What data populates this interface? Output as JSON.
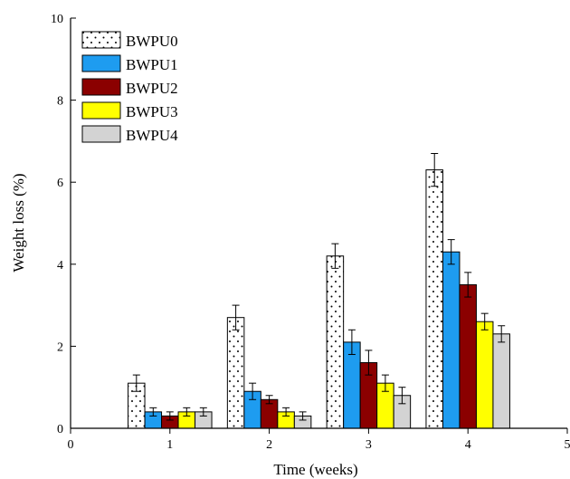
{
  "chart_data": {
    "type": "bar",
    "title": "",
    "xlabel": "Time (weeks)",
    "ylabel": "Weight loss (%)",
    "categories": [
      1,
      2,
      3,
      4
    ],
    "xlim": [
      0,
      5
    ],
    "ylim": [
      0,
      10
    ],
    "x_ticks": [
      "0",
      "1",
      "2",
      "3",
      "4",
      "5"
    ],
    "y_ticks": [
      "0",
      "2",
      "4",
      "6",
      "8",
      "10"
    ],
    "grid": false,
    "legend_position": "top-left",
    "series": [
      {
        "name": "BWPU0",
        "color": "#ffffff",
        "pattern": "dots",
        "values": [
          1.1,
          2.7,
          4.2,
          6.3
        ],
        "errors": [
          0.2,
          0.3,
          0.3,
          0.4
        ]
      },
      {
        "name": "BWPU1",
        "color": "#1e9cf0",
        "values": [
          0.4,
          0.9,
          2.1,
          4.3
        ],
        "errors": [
          0.1,
          0.2,
          0.3,
          0.3
        ]
      },
      {
        "name": "BWPU2",
        "color": "#8b0000",
        "values": [
          0.3,
          0.7,
          1.6,
          3.5
        ],
        "errors": [
          0.1,
          0.1,
          0.3,
          0.3
        ]
      },
      {
        "name": "BWPU3",
        "color": "#ffff00",
        "values": [
          0.4,
          0.4,
          1.1,
          2.6
        ],
        "errors": [
          0.1,
          0.1,
          0.2,
          0.2
        ]
      },
      {
        "name": "BWPU4",
        "color": "#d3d3d3",
        "values": [
          0.4,
          0.3,
          0.8,
          2.3
        ],
        "errors": [
          0.1,
          0.1,
          0.2,
          0.2
        ]
      }
    ]
  }
}
